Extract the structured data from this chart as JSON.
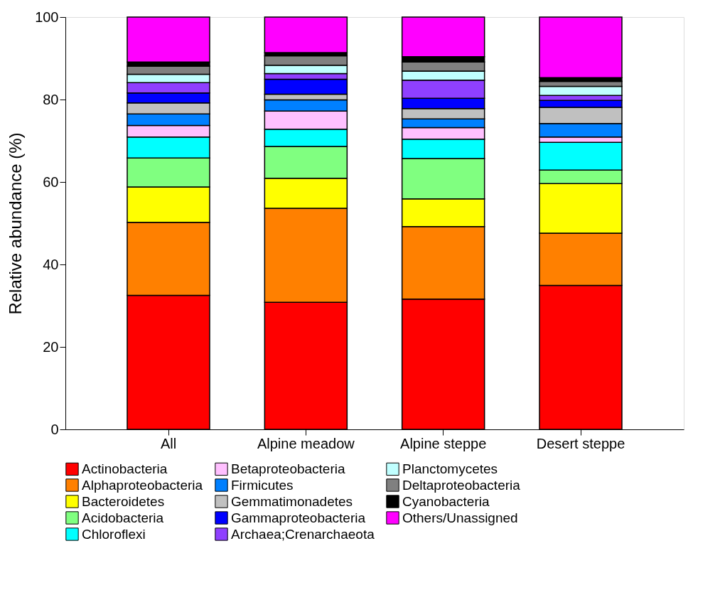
{
  "chart_data": {
    "type": "bar",
    "stacked": true,
    "ylabel": "Relative abundance (%)",
    "categories": [
      "All",
      "Alpine meadow",
      "Alpine steppe",
      "Desert steppe"
    ],
    "ylim": [
      0,
      100
    ],
    "yticks": [
      0,
      20,
      40,
      60,
      80,
      100
    ],
    "grid": false,
    "legend": "bottom",
    "series": [
      {
        "name": "Actinobacteria",
        "color": "#ff0000",
        "values": [
          32.5,
          30.8,
          31.6,
          34.9
        ]
      },
      {
        "name": "Alphaproteobacteria",
        "color": "#ff8000",
        "values": [
          17.7,
          22.8,
          17.6,
          12.7
        ]
      },
      {
        "name": "Bacteroidetes",
        "color": "#ffff00",
        "values": [
          8.6,
          7.3,
          6.7,
          12.0
        ]
      },
      {
        "name": "Acidobacteria",
        "color": "#80ff80",
        "values": [
          7.0,
          7.7,
          9.8,
          3.3
        ]
      },
      {
        "name": "Chloroflexi",
        "color": "#00ffff",
        "values": [
          5.1,
          4.2,
          4.7,
          6.7
        ]
      },
      {
        "name": "Betaproteobacteria",
        "color": "#ffc0ff",
        "values": [
          2.8,
          4.4,
          2.8,
          1.3
        ]
      },
      {
        "name": "Firmicutes",
        "color": "#0080ff",
        "values": [
          2.8,
          2.7,
          2.1,
          3.3
        ]
      },
      {
        "name": "Gemmatimonadetes",
        "color": "#c0c0c0",
        "values": [
          2.7,
          1.4,
          2.5,
          3.9
        ]
      },
      {
        "name": "Gammaproteobacteria",
        "color": "#0000ff",
        "values": [
          2.4,
          3.6,
          2.5,
          1.7
        ]
      },
      {
        "name": "Archaea;Crenarchaeota",
        "color": "#8f40ff",
        "values": [
          2.5,
          1.4,
          4.4,
          1.2
        ]
      },
      {
        "name": "Planctomycetes",
        "color": "#c0ffff",
        "values": [
          2.0,
          2.0,
          2.2,
          2.2
        ]
      },
      {
        "name": "Deltaproteobacteria",
        "color": "#808080",
        "values": [
          2.0,
          2.3,
          2.2,
          1.2
        ]
      },
      {
        "name": "Cyanobacteria",
        "color": "#000000",
        "values": [
          1.0,
          0.8,
          1.3,
          0.9
        ]
      },
      {
        "name": "Others/Unassigned",
        "color": "#ff00ff",
        "values": [
          10.9,
          8.6,
          9.6,
          14.7
        ]
      }
    ]
  }
}
